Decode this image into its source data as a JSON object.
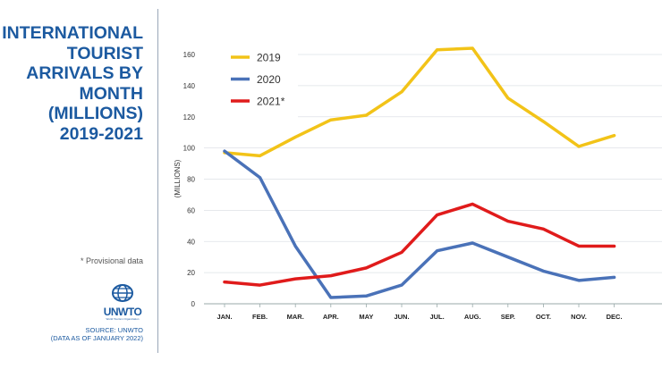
{
  "title": "INTERNATIONAL\nTOURIST\nARRIVALS BY\nMONTH\n(MILLIONS)\n2019-2021",
  "note": "* Provisional data",
  "logo": {
    "text": "UNWTO",
    "subtitle": "World Tourism Organization"
  },
  "source": {
    "line1": "SOURCE: UNWTO",
    "line2": "(DATA AS OF JANUARY 2022)"
  },
  "colors": {
    "title": "#1c5aa0",
    "2019": "#f2c318",
    "2020": "#4a72b8",
    "2021": "#e01b1b"
  },
  "chart_data": {
    "type": "line",
    "ylabel": "(MILLIONS)",
    "ylim": [
      0,
      160
    ],
    "yticks": [
      0,
      20,
      40,
      60,
      80,
      100,
      120,
      140,
      160
    ],
    "grid": true,
    "legend": "top-left",
    "categories": [
      "JAN.",
      "FEB.",
      "MAR.",
      "APR.",
      "MAY",
      "JUN.",
      "JUL.",
      "AUG.",
      "SEP.",
      "OCT.",
      "NOV.",
      "DEC."
    ],
    "series": [
      {
        "name": "2019",
        "color": "#f2c318",
        "values": [
          97,
          95,
          107,
          118,
          121,
          136,
          163,
          164,
          132,
          117,
          101,
          108
        ]
      },
      {
        "name": "2020",
        "color": "#4a72b8",
        "values": [
          98,
          81,
          37,
          4,
          5,
          12,
          34,
          39,
          30,
          21,
          15,
          17
        ]
      },
      {
        "name": "2021*",
        "color": "#e01b1b",
        "values": [
          14,
          12,
          16,
          18,
          23,
          33,
          57,
          64,
          53,
          48,
          37,
          37
        ]
      }
    ]
  }
}
